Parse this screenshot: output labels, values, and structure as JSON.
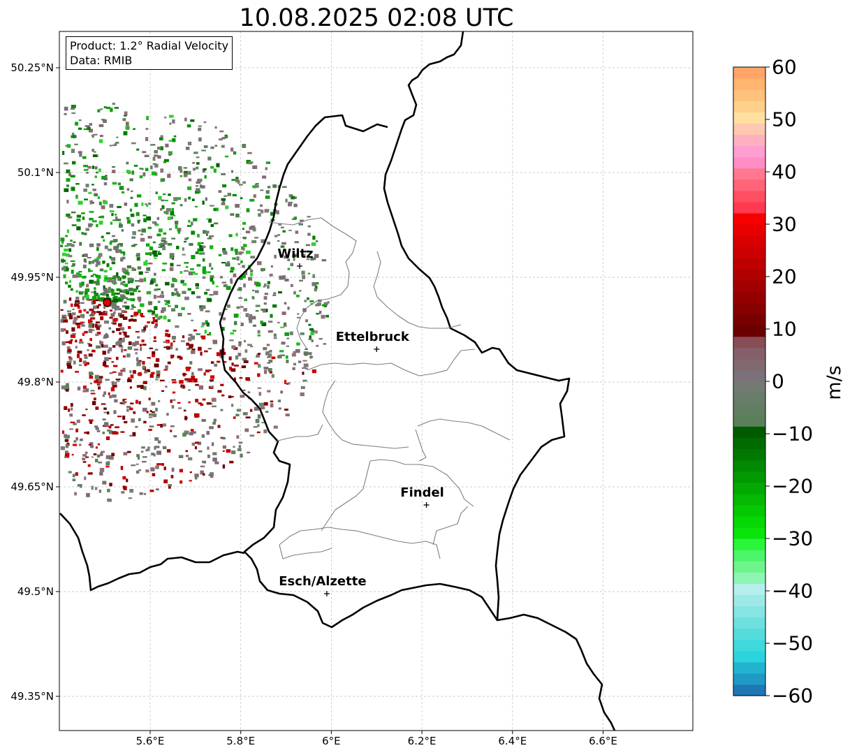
{
  "title": "10.08.2025 02:08 UTC",
  "info": {
    "product": "Product: 1.2° Radial Velocity",
    "source": "Data: RMIB"
  },
  "axes": {
    "lat_ticks": [
      "50.25°N",
      "50.1°N",
      "49.95°N",
      "49.8°N",
      "49.65°N",
      "49.5°N",
      "49.35°N"
    ],
    "lon_ticks": [
      "5.6°E",
      "5.8°E",
      "6°E",
      "6.2°E",
      "6.4°E",
      "6.6°E"
    ],
    "grid": true
  },
  "cities": [
    {
      "name": "Wiltz",
      "lon": 5.93,
      "lat": 49.966
    },
    {
      "name": "Ettelbruck",
      "lon": 6.1,
      "lat": 49.847
    },
    {
      "name": "Findel",
      "lon": 6.21,
      "lat": 49.624
    },
    {
      "name": "Esch/Alzette",
      "lon": 5.99,
      "lat": 49.497
    }
  ],
  "radar_site": {
    "lon": 5.505,
    "lat": 49.914
  },
  "colorbar": {
    "unit": "m/s",
    "min": -60,
    "max": 60,
    "ticks": [
      "60",
      "50",
      "40",
      "30",
      "20",
      "10",
      "0",
      "−10",
      "−20",
      "−30",
      "−40",
      "−50",
      "−60"
    ],
    "colors_bottom_to_top": [
      "#1f77b4",
      "#1f9ac4",
      "#22b4cf",
      "#2bd4dc",
      "#3fd9dc",
      "#55dcdc",
      "#6ee0df",
      "#86e4e2",
      "#9ee9e8",
      "#b6eeee",
      "#8ef5b3",
      "#6df58c",
      "#4cf56a",
      "#2bf53a",
      "#0ae40a",
      "#06d806",
      "#05c805",
      "#04b804",
      "#03a803",
      "#029802",
      "#028802",
      "#017801",
      "#016a01",
      "#005a00",
      "#5a805a",
      "#607e62",
      "#687c6a",
      "#727a72",
      "#7a7278",
      "#806a70",
      "#85606a",
      "#884e58",
      "#6a0000",
      "#780000",
      "#860000",
      "#940000",
      "#a20000",
      "#b00000",
      "#be0000",
      "#cc0000",
      "#da0000",
      "#e80000",
      "#f60000",
      "#ff3a50",
      "#ff4f62",
      "#ff6478",
      "#ff7890",
      "#ff8ec4",
      "#ff9ed0",
      "#ffb0c0",
      "#ffc8b0",
      "#ffe0a0",
      "#ffd08a",
      "#ffc27c",
      "#ffb470",
      "#ffa565"
    ]
  }
}
